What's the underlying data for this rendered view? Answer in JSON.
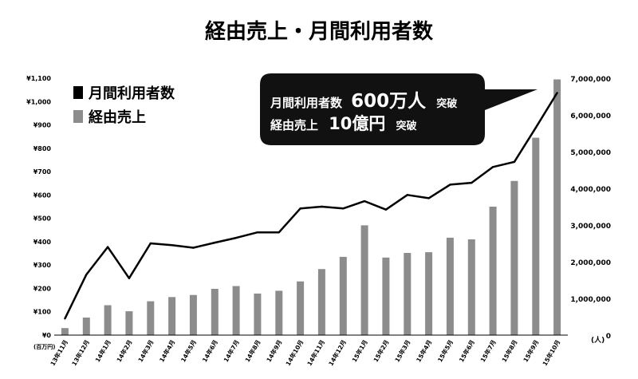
{
  "chart_data": {
    "type": "bar",
    "title": "経由売上・月間利用者数",
    "categories": [
      "13年11月",
      "13年12月",
      "14年1月",
      "14年2月",
      "14年3月",
      "14年4月",
      "14年5月",
      "14年6月",
      "14年7月",
      "14年8月",
      "14年9月",
      "14年10月",
      "14年11月",
      "14年12月",
      "15年1月",
      "15年2月",
      "15年3月",
      "15年4月",
      "15年5月",
      "15年6月",
      "15年7月",
      "15年8月",
      "15年9月",
      "15年10月"
    ],
    "y_left": {
      "unit_label": "(百万円)",
      "ylim": [
        0,
        1100
      ],
      "ticks": [
        0,
        100,
        200,
        300,
        400,
        500,
        600,
        700,
        800,
        900,
        1000,
        1100
      ],
      "tick_labels": [
        "¥0",
        "¥100",
        "¥200",
        "¥300",
        "¥400",
        "¥500",
        "¥600",
        "¥700",
        "¥800",
        "¥900",
        "¥1,000",
        "¥1,100"
      ]
    },
    "y_right": {
      "unit_label": "(人)",
      "ylim": [
        0,
        7000000
      ],
      "ticks": [
        0,
        1000000,
        2000000,
        3000000,
        4000000,
        5000000,
        6000000,
        7000000
      ],
      "tick_labels": [
        "0",
        "1,000,000",
        "2,000,000",
        "3,000,000",
        "4,000,000",
        "5,000,000",
        "6,000,000",
        "7,000,000"
      ]
    },
    "series": [
      {
        "name": "月間利用者数",
        "type": "line",
        "axis": "right",
        "color": "#000000",
        "values": [
          450000,
          1650000,
          2400000,
          1550000,
          2500000,
          2450000,
          2380000,
          2520000,
          2650000,
          2800000,
          2800000,
          3450000,
          3500000,
          3450000,
          3650000,
          3420000,
          3820000,
          3730000,
          4100000,
          4150000,
          4580000,
          4720000,
          5650000,
          6600000
        ]
      },
      {
        "name": "経由売上",
        "type": "bar",
        "axis": "left",
        "color": "#8c8c8c",
        "values": [
          30,
          75,
          128,
          102,
          145,
          163,
          172,
          198,
          210,
          178,
          190,
          230,
          283,
          335,
          470,
          332,
          352,
          355,
          417,
          410,
          550,
          660,
          845,
          1095
        ]
      }
    ],
    "legend": {
      "placement": "top-left",
      "items": [
        {
          "label": "月間利用者数",
          "color": "#000000"
        },
        {
          "label": "経由売上",
          "color": "#8c8c8c"
        }
      ]
    },
    "callout": {
      "line1_prefix": "月間利用者数",
      "line1_value": "600万人",
      "line1_suffix": "突破",
      "line2_prefix": "経由売上",
      "line2_value": "10億円",
      "line2_suffix": "突破"
    },
    "grid": false
  }
}
